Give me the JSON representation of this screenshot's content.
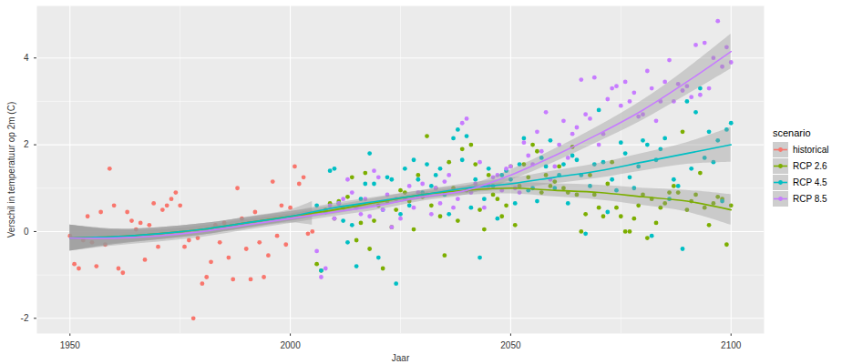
{
  "chart_data": {
    "type": "scatter",
    "x_label": "Jaar",
    "y_label": "Verschil in temperatuur op 2m (C)",
    "legend_title": "scenario",
    "legend": "right",
    "grid": true,
    "xlim": [
      1942.5,
      2107.5
    ],
    "ylim": [
      -2.35,
      5.2
    ],
    "xticks": [
      1950,
      2000,
      2050,
      2100
    ],
    "yticks": [
      -2,
      0,
      2,
      4
    ],
    "series": [
      {
        "name": "historical",
        "color": "#F8766D",
        "x": [
          1950,
          1951,
          1952,
          1953,
          1954,
          1955,
          1956,
          1957,
          1958,
          1959,
          1960,
          1961,
          1962,
          1963,
          1964,
          1965,
          1966,
          1967,
          1968,
          1969,
          1970,
          1971,
          1972,
          1973,
          1974,
          1975,
          1976,
          1977,
          1978,
          1979,
          1980,
          1981,
          1982,
          1983,
          1984,
          1985,
          1986,
          1987,
          1988,
          1989,
          1990,
          1991,
          1992,
          1993,
          1994,
          1995,
          1996,
          1997,
          1998,
          1999,
          2000,
          2001,
          2002,
          2003,
          2004,
          2005
        ],
        "values": [
          -0.1,
          -0.75,
          -0.85,
          -0.2,
          0.35,
          -0.25,
          -0.8,
          0.45,
          -0.3,
          1.45,
          0.6,
          -0.85,
          -0.95,
          0.45,
          0.25,
          0.05,
          0.2,
          -0.65,
          0.15,
          0.65,
          -0.35,
          0.5,
          0.6,
          0.75,
          0.9,
          0.6,
          -0.35,
          -0.2,
          -2.0,
          -0.15,
          -1.2,
          -1.05,
          -0.7,
          0.15,
          -0.25,
          0.2,
          -0.6,
          -1.1,
          1.0,
          0.3,
          -0.4,
          -1.1,
          0.45,
          -0.25,
          -1.05,
          -0.55,
          1.15,
          -0.1,
          0.6,
          -0.3,
          0.55,
          1.5,
          1.1,
          1.25,
          -0.05,
          0.0
        ],
        "smooth": {
          "x": [
            1950,
            1960,
            1970,
            1980,
            1990,
            2000,
            2005
          ],
          "values": [
            -0.15,
            -0.12,
            -0.05,
            0.05,
            0.2,
            0.35,
            0.42
          ],
          "lower": [
            -0.45,
            -0.28,
            -0.19,
            -0.08,
            0.07,
            0.2,
            0.15
          ],
          "upper": [
            0.15,
            0.04,
            0.09,
            0.18,
            0.33,
            0.5,
            0.69
          ]
        }
      },
      {
        "name": "RCP 2.6",
        "color": "#7CAE00",
        "x": [
          2006,
          2007,
          2008,
          2009,
          2010,
          2011,
          2012,
          2013,
          2014,
          2015,
          2016,
          2017,
          2018,
          2019,
          2020,
          2021,
          2022,
          2023,
          2024,
          2025,
          2026,
          2027,
          2028,
          2029,
          2030,
          2031,
          2032,
          2033,
          2034,
          2035,
          2036,
          2037,
          2038,
          2039,
          2040,
          2041,
          2042,
          2043,
          2044,
          2045,
          2046,
          2047,
          2048,
          2049,
          2050,
          2051,
          2052,
          2053,
          2054,
          2055,
          2056,
          2057,
          2058,
          2059,
          2060,
          2061,
          2062,
          2063,
          2064,
          2065,
          2066,
          2067,
          2068,
          2069,
          2070,
          2071,
          2072,
          2073,
          2074,
          2075,
          2076,
          2077,
          2078,
          2079,
          2080,
          2081,
          2082,
          2083,
          2084,
          2085,
          2086,
          2087,
          2088,
          2089,
          2090,
          2091,
          2092,
          2093,
          2094,
          2095,
          2096,
          2097,
          2098,
          2099,
          2100
        ],
        "values": [
          -0.75,
          -0.9,
          0.5,
          0.65,
          0.3,
          0.7,
          0.55,
          0.8,
          1.25,
          -0.2,
          0.2,
          1.35,
          -0.4,
          0.25,
          0.6,
          -0.85,
          0.7,
          0.1,
          0.5,
          0.95,
          0.9,
          0.7,
          0.05,
          1.3,
          0.8,
          2.2,
          0.6,
          1.0,
          0.35,
          -0.55,
          1.6,
          1.0,
          0.25,
          1.9,
          0.95,
          2.0,
          1.55,
          0.5,
          0.05,
          1.3,
          0.85,
          0.75,
          0.35,
          0.6,
          1.5,
          0.15,
          1.05,
          1.55,
          1.25,
          2.0,
          1.85,
          0.9,
          1.3,
          1.05,
          1.15,
          1.5,
          1.0,
          0.9,
          1.95,
          0.85,
          0.0,
          0.4,
          1.3,
          0.85,
          0.55,
          0.35,
          1.1,
          1.6,
          0.55,
          0.35,
          0.0,
          0.0,
          0.3,
          0.6,
          0.85,
          -0.15,
          0.75,
          0.2,
          0.55,
          0.65,
          0.9,
          1.05,
          0.9,
          2.3,
          0.5,
          0.7,
          0.85,
          1.35,
          0.55,
          0.15,
          0.65,
          0.8,
          0.75,
          -0.3,
          0.6
        ],
        "smooth": {
          "x": [
            1950,
            1960,
            1970,
            1980,
            1990,
            2000,
            2010,
            2020,
            2030,
            2040,
            2050,
            2060,
            2070,
            2080,
            2090,
            2100
          ],
          "values": [
            -0.15,
            -0.12,
            -0.05,
            0.05,
            0.2,
            0.35,
            0.5,
            0.68,
            0.85,
            0.95,
            1.0,
            0.95,
            0.9,
            0.8,
            0.7,
            0.5
          ],
          "lower": [
            -0.45,
            -0.3,
            -0.19,
            -0.08,
            0.08,
            0.24,
            0.4,
            0.58,
            0.75,
            0.84,
            0.87,
            0.8,
            0.73,
            0.6,
            0.45,
            0.15
          ],
          "upper": [
            0.15,
            0.06,
            0.09,
            0.18,
            0.32,
            0.46,
            0.6,
            0.78,
            0.95,
            1.06,
            1.13,
            1.1,
            1.07,
            1.0,
            0.95,
            0.85
          ]
        }
      },
      {
        "name": "RCP 4.5",
        "color": "#00BFC4",
        "x": [
          2006,
          2007,
          2008,
          2009,
          2010,
          2011,
          2012,
          2013,
          2014,
          2015,
          2016,
          2017,
          2018,
          2019,
          2020,
          2021,
          2022,
          2023,
          2024,
          2025,
          2026,
          2027,
          2028,
          2029,
          2030,
          2031,
          2032,
          2033,
          2034,
          2035,
          2036,
          2037,
          2038,
          2039,
          2040,
          2041,
          2042,
          2043,
          2044,
          2045,
          2046,
          2047,
          2048,
          2049,
          2050,
          2051,
          2052,
          2053,
          2054,
          2055,
          2056,
          2057,
          2058,
          2059,
          2060,
          2061,
          2062,
          2063,
          2064,
          2065,
          2066,
          2067,
          2068,
          2069,
          2070,
          2071,
          2072,
          2073,
          2074,
          2075,
          2076,
          2077,
          2078,
          2079,
          2080,
          2081,
          2082,
          2083,
          2084,
          2085,
          2086,
          2087,
          2088,
          2089,
          2090,
          2091,
          2092,
          2093,
          2094,
          2095,
          2096,
          2097,
          2098,
          2099,
          2100
        ],
        "values": [
          0.6,
          -0.9,
          0.45,
          1.4,
          1.45,
          0.65,
          0.25,
          -0.25,
          0.15,
          -0.8,
          0.75,
          1.1,
          1.8,
          1.1,
          -0.6,
          0.5,
          1.25,
          1.2,
          -1.2,
          0.4,
          1.45,
          0.6,
          1.65,
          1.2,
          0.9,
          1.55,
          1.05,
          1.3,
          1.45,
          0.85,
          0.4,
          2.15,
          2.35,
          1.65,
          2.2,
          0.55,
          1.2,
          -0.6,
          0.75,
          1.45,
          1.05,
          0.3,
          1.3,
          1.4,
          1.2,
          0.65,
          1.55,
          2.15,
          0.95,
          1.0,
          0.7,
          1.7,
          1.5,
          2.1,
          1.0,
          1.3,
          1.55,
          0.65,
          1.75,
          1.65,
          1.3,
          -0.05,
          1.05,
          1.55,
          2.8,
          1.6,
          0.45,
          1.2,
          0.95,
          2.05,
          1.8,
          1.25,
          1.0,
          1.5,
          2.1,
          2.0,
          -0.1,
          1.65,
          1.9,
          2.15,
          0.75,
          1.2,
          1.05,
          -0.4,
          3.0,
          1.45,
          2.75,
          3.3,
          1.7,
          2.3,
          1.6,
          2.1,
          0.7,
          2.35,
          2.5
        ],
        "smooth": {
          "x": [
            1950,
            1960,
            1970,
            1980,
            1990,
            2000,
            2010,
            2020,
            2030,
            2040,
            2050,
            2060,
            2070,
            2080,
            2090,
            2100
          ],
          "values": [
            -0.15,
            -0.12,
            -0.05,
            0.05,
            0.2,
            0.35,
            0.55,
            0.7,
            0.85,
            1.0,
            1.1,
            1.25,
            1.4,
            1.6,
            1.8,
            2.0
          ],
          "lower": [
            -0.45,
            -0.3,
            -0.19,
            -0.08,
            0.08,
            0.24,
            0.45,
            0.6,
            0.75,
            0.89,
            0.97,
            1.1,
            1.23,
            1.4,
            1.55,
            1.6
          ],
          "upper": [
            0.15,
            0.06,
            0.09,
            0.18,
            0.32,
            0.46,
            0.65,
            0.8,
            0.95,
            1.11,
            1.23,
            1.4,
            1.57,
            1.8,
            2.05,
            2.4
          ]
        }
      },
      {
        "name": "RCP 8.5",
        "color": "#C77CFF",
        "x": [
          2006,
          2007,
          2008,
          2009,
          2010,
          2011,
          2012,
          2013,
          2014,
          2015,
          2016,
          2017,
          2018,
          2019,
          2020,
          2021,
          2022,
          2023,
          2024,
          2025,
          2026,
          2027,
          2028,
          2029,
          2030,
          2031,
          2032,
          2033,
          2034,
          2035,
          2036,
          2037,
          2038,
          2039,
          2040,
          2041,
          2042,
          2043,
          2044,
          2045,
          2046,
          2047,
          2048,
          2049,
          2050,
          2051,
          2052,
          2053,
          2054,
          2055,
          2056,
          2057,
          2058,
          2059,
          2060,
          2061,
          2062,
          2063,
          2064,
          2065,
          2066,
          2067,
          2068,
          2069,
          2070,
          2071,
          2072,
          2073,
          2074,
          2075,
          2076,
          2077,
          2078,
          2079,
          2080,
          2081,
          2082,
          2083,
          2084,
          2085,
          2086,
          2087,
          2088,
          2089,
          2090,
          2091,
          2092,
          2093,
          2094,
          2095,
          2096,
          2097,
          2098,
          2099,
          2100
        ],
        "values": [
          -0.45,
          -1.05,
          -0.85,
          0.6,
          0.3,
          0.65,
          0.75,
          1.2,
          0.9,
          0.55,
          0.4,
          0.75,
          0.35,
          1.4,
          1.25,
          0.5,
          0.85,
          0.1,
          0.75,
          0.3,
          0.75,
          1.05,
          0.55,
          0.9,
          1.1,
          0.85,
          0.4,
          1.0,
          0.65,
          1.15,
          1.3,
          0.55,
          0.75,
          2.5,
          2.6,
          0.9,
          1.1,
          1.6,
          0.55,
          1.05,
          1.25,
          1.3,
          0.95,
          1.45,
          1.5,
          1.0,
          0.9,
          2.05,
          1.75,
          1.55,
          2.3,
          1.85,
          2.75,
          1.2,
          1.5,
          2.0,
          2.55,
          1.7,
          2.25,
          2.4,
          3.5,
          2.7,
          2.6,
          3.55,
          2.0,
          2.25,
          3.05,
          3.3,
          3.35,
          2.9,
          3.45,
          3.0,
          3.2,
          2.65,
          2.7,
          3.7,
          3.3,
          2.55,
          3.0,
          3.45,
          3.95,
          3.0,
          3.4,
          3.25,
          3.35,
          3.1,
          4.3,
          3.15,
          4.35,
          3.3,
          4.0,
          4.85,
          3.8,
          4.25,
          3.9
        ],
        "smooth": {
          "x": [
            1950,
            1960,
            1970,
            1980,
            1990,
            2000,
            2010,
            2020,
            2030,
            2040,
            2050,
            2060,
            2070,
            2080,
            2090,
            2100
          ],
          "values": [
            -0.15,
            -0.15,
            -0.1,
            0.0,
            0.15,
            0.3,
            0.45,
            0.6,
            0.8,
            0.95,
            1.3,
            1.75,
            2.25,
            2.8,
            3.45,
            4.15
          ],
          "lower": [
            -0.45,
            -0.33,
            -0.24,
            -0.13,
            0.03,
            0.19,
            0.35,
            0.5,
            0.7,
            0.85,
            1.18,
            1.6,
            2.07,
            2.57,
            3.15,
            3.75
          ],
          "upper": [
            0.15,
            0.03,
            0.04,
            0.13,
            0.27,
            0.41,
            0.55,
            0.7,
            0.9,
            1.05,
            1.42,
            1.9,
            2.43,
            3.03,
            3.75,
            4.55
          ]
        }
      }
    ]
  }
}
